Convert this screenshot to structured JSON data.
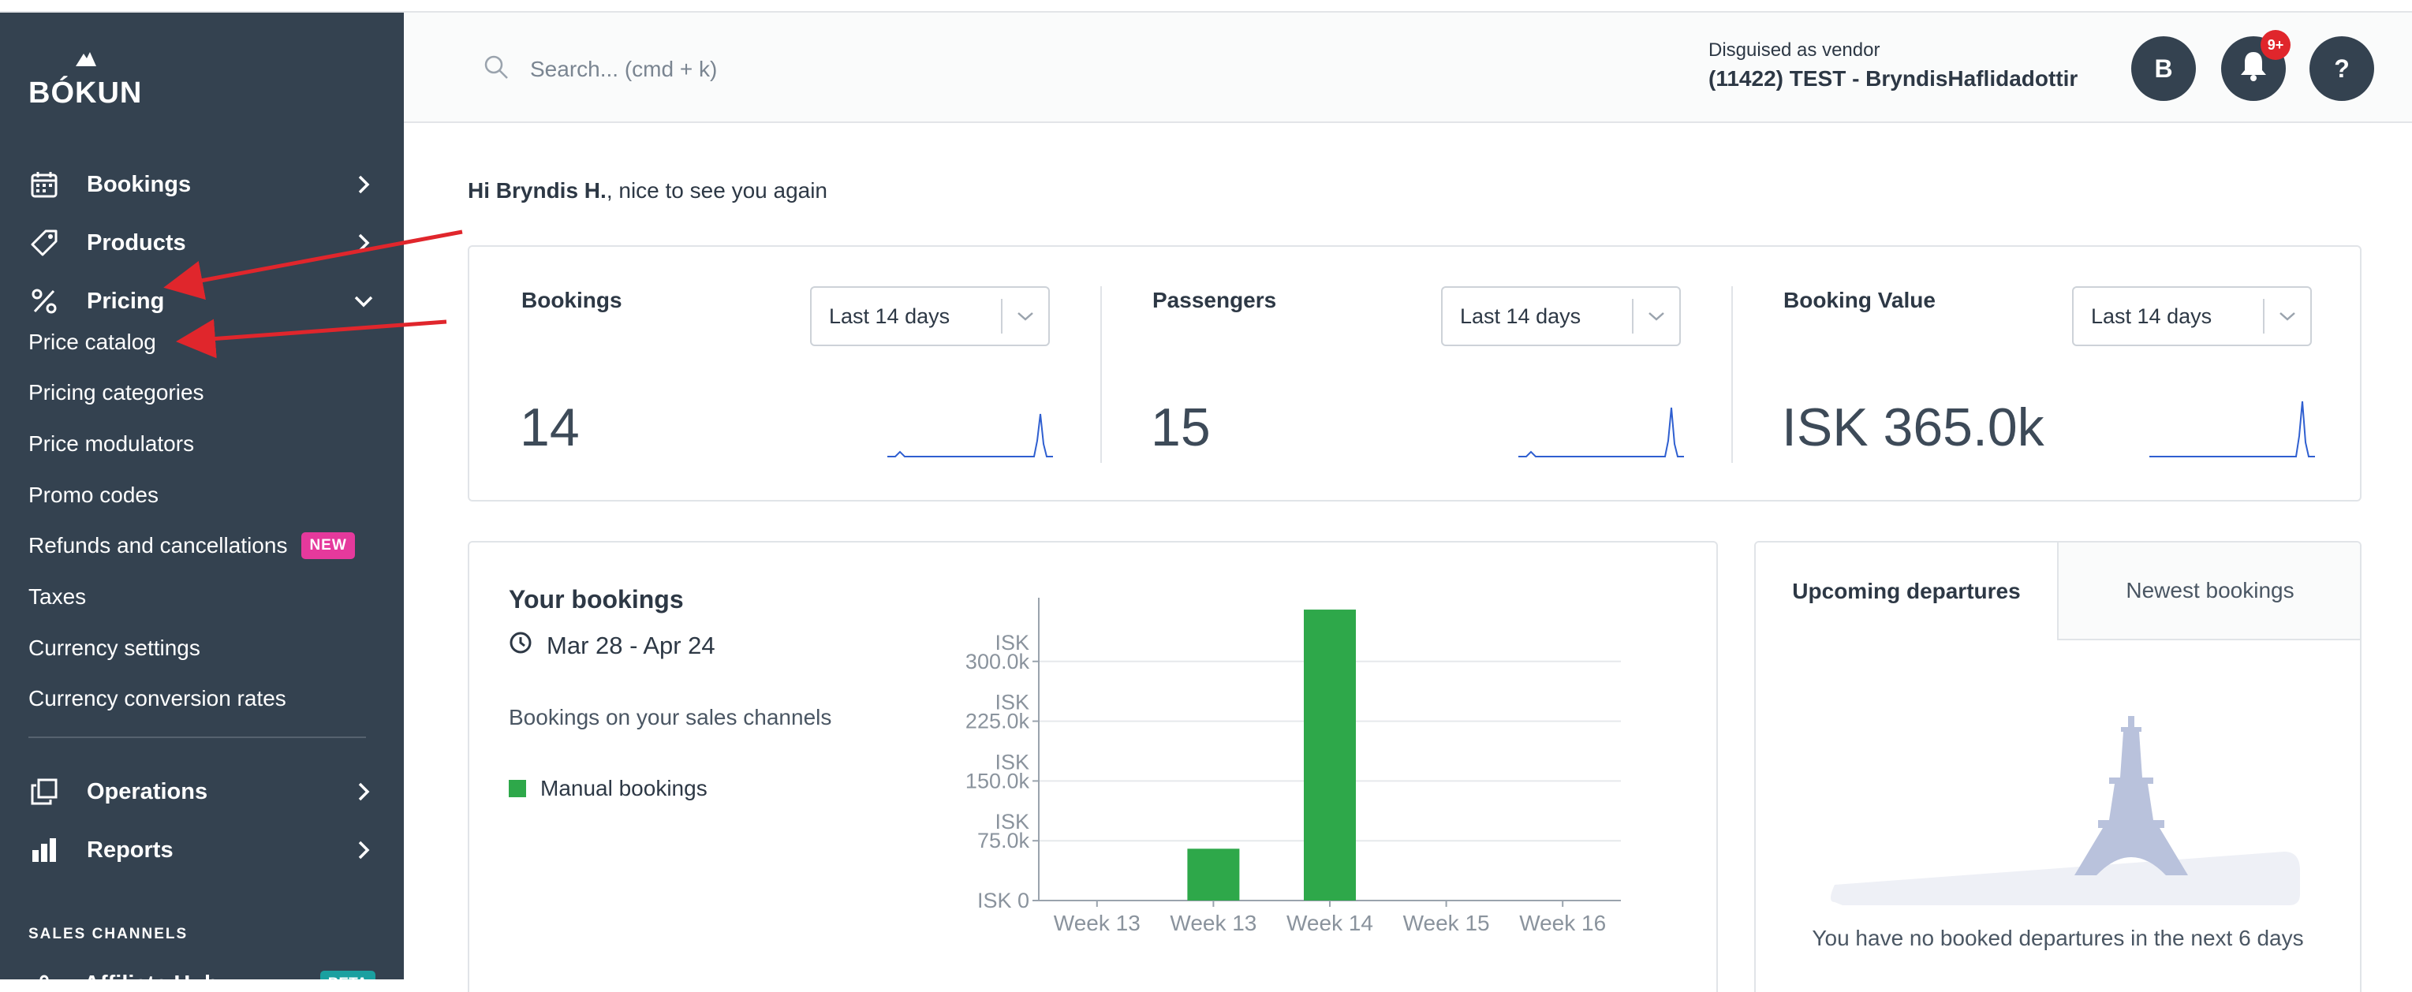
{
  "sidebar": {
    "logo": "BÓKUN",
    "nav": {
      "bookings": "Bookings",
      "products": "Products",
      "pricing": "Pricing",
      "operations": "Operations",
      "reports": "Reports"
    },
    "pricing_submenu": [
      "Price catalog",
      "Pricing categories",
      "Price modulators",
      "Promo codes",
      "Refunds and cancellations",
      "Taxes",
      "Currency settings",
      "Currency conversion rates"
    ],
    "new_badge": "NEW",
    "section_label": "SALES CHANNELS",
    "affiliate": "Affiliate Hub",
    "beta_badge": "BETA"
  },
  "header": {
    "search_placeholder": "Search... (cmd + k)",
    "vendor_label": "Disguised as vendor",
    "vendor_name": "(11422) TEST - BryndisHaflidadottir",
    "avatar_initial": "B",
    "notification_count": "9+",
    "help_label": "?"
  },
  "greeting": {
    "name": "Hi Bryndis H.",
    "rest": ", nice to see you again"
  },
  "stats": [
    {
      "title": "Bookings",
      "period": "Last 14 days",
      "value": "14"
    },
    {
      "title": "Passengers",
      "period": "Last 14 days",
      "value": "15"
    },
    {
      "title": "Booking Value",
      "period": "Last 14 days",
      "value": "ISK 365.0k"
    }
  ],
  "your_bookings": {
    "title": "Your bookings",
    "range": "Mar 28 - Apr 24",
    "channels_label": "Bookings on your sales channels",
    "legend": "Manual bookings"
  },
  "departures": {
    "tab_active": "Upcoming departures",
    "tab_inactive": "Newest bookings",
    "empty_text": "You have no booked departures in the next 6 days"
  },
  "colors": {
    "sidebar": "#344250",
    "bar": "#2ea84a",
    "sparkline": "#2f5fd0",
    "annotation_arrow": "#e0262c",
    "new_badge": "#e5399c"
  },
  "chart_data": {
    "type": "bar",
    "categories": [
      "Week 13",
      "Week 13",
      "Week 14",
      "Week 15",
      "Week 16"
    ],
    "series": [
      {
        "name": "Manual bookings",
        "values": [
          0,
          65000,
          365000,
          0,
          0
        ]
      }
    ],
    "ytick_labels": [
      {
        "value": 0,
        "lines": [
          "ISK 0"
        ]
      },
      {
        "value": 75000,
        "lines": [
          "ISK",
          "75.0k"
        ]
      },
      {
        "value": 150000,
        "lines": [
          "ISK",
          "150.0k"
        ]
      },
      {
        "value": 225000,
        "lines": [
          "ISK",
          "225.0k"
        ]
      },
      {
        "value": 300000,
        "lines": [
          "ISK",
          "300.0k"
        ]
      }
    ],
    "ylim": [
      0,
      370000
    ],
    "grid": true
  }
}
